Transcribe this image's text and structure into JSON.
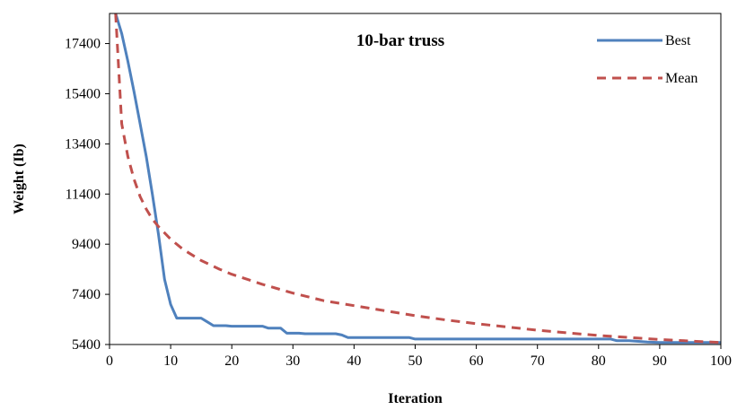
{
  "chart_data": {
    "type": "line",
    "title": "10-bar truss",
    "xlabel": "Iteration",
    "ylabel": "Weight (Ib)",
    "xlim": [
      0,
      100
    ],
    "ylim": [
      5400,
      18600
    ],
    "xticks": [
      0,
      10,
      20,
      30,
      40,
      50,
      60,
      70,
      80,
      90,
      100
    ],
    "yticks": [
      5400,
      7400,
      9400,
      11400,
      13400,
      15400,
      17400
    ],
    "grid": false,
    "legend_position": "top-right",
    "series": [
      {
        "name": "Best",
        "color": "#4f81bd",
        "style": "solid",
        "x": [
          1,
          2,
          3,
          4,
          5,
          6,
          7,
          8,
          9,
          10,
          11,
          12,
          13,
          14,
          15,
          16,
          17,
          18,
          19,
          20,
          21,
          22,
          23,
          24,
          25,
          26,
          27,
          28,
          29,
          30,
          31,
          32,
          33,
          34,
          35,
          36,
          37,
          38,
          39,
          40,
          45,
          49,
          50,
          55,
          60,
          65,
          70,
          75,
          80,
          82,
          83,
          85,
          88,
          90,
          95,
          100
        ],
        "y": [
          18600,
          17800,
          16700,
          15500,
          14200,
          12900,
          11400,
          9800,
          8000,
          7000,
          6450,
          6450,
          6450,
          6450,
          6450,
          6300,
          6150,
          6150,
          6150,
          6130,
          6130,
          6130,
          6130,
          6130,
          6130,
          6050,
          6050,
          6050,
          5850,
          5850,
          5850,
          5830,
          5830,
          5830,
          5830,
          5830,
          5830,
          5780,
          5680,
          5680,
          5680,
          5680,
          5620,
          5620,
          5620,
          5620,
          5620,
          5620,
          5620,
          5620,
          5550,
          5550,
          5500,
          5480,
          5480,
          5480
        ]
      },
      {
        "name": "Mean",
        "color": "#c0504d",
        "style": "dashed",
        "x": [
          1,
          2,
          3,
          4,
          5,
          6,
          7,
          8,
          9,
          10,
          12,
          15,
          18,
          20,
          25,
          30,
          35,
          40,
          45,
          50,
          55,
          60,
          65,
          70,
          75,
          80,
          85,
          90,
          95,
          100
        ],
        "y": [
          18600,
          14200,
          12900,
          12000,
          11300,
          10800,
          10400,
          10100,
          9850,
          9600,
          9200,
          8750,
          8400,
          8200,
          7800,
          7450,
          7150,
          6950,
          6750,
          6550,
          6380,
          6230,
          6100,
          5970,
          5860,
          5760,
          5680,
          5600,
          5540,
          5480
        ]
      }
    ]
  }
}
